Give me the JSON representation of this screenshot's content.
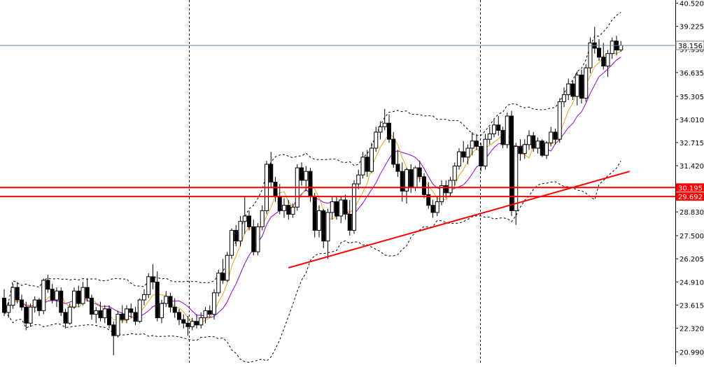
{
  "chart_data": {
    "type": "candlestick",
    "title": "",
    "ylim": [
      20.3,
      40.7
    ],
    "price_axis_ticks": [
      "40.520",
      "39.225",
      "37.930",
      "36.635",
      "35.305",
      "34.010",
      "32.715",
      "31.420",
      "30.125",
      "28.830",
      "27.500",
      "26.205",
      "24.910",
      "23.615",
      "22.320",
      "20.990"
    ],
    "current_price": {
      "value": 38.156,
      "label": "38.156"
    },
    "horizontal_levels": [
      {
        "value": 30.195,
        "label": "30.195",
        "color": "#ff0000"
      },
      {
        "value": 29.692,
        "label": "29.692",
        "color": "#ff0000"
      }
    ],
    "trendline": {
      "from_index": 65,
      "from_value": 25.7,
      "to_index": 143,
      "to_value": 31.1,
      "color": "#ff0000"
    },
    "ohlc": [
      [
        24.0,
        24.5,
        23.0,
        23.2
      ],
      [
        23.2,
        23.8,
        22.9,
        23.6
      ],
      [
        23.6,
        24.8,
        23.4,
        24.6
      ],
      [
        24.6,
        24.9,
        23.7,
        23.9
      ],
      [
        23.9,
        24.2,
        23.3,
        23.5
      ],
      [
        23.5,
        23.8,
        22.2,
        22.6
      ],
      [
        22.6,
        23.7,
        22.4,
        23.5
      ],
      [
        23.5,
        24.1,
        23.2,
        23.9
      ],
      [
        23.9,
        24.0,
        23.0,
        23.3
      ],
      [
        23.3,
        25.1,
        23.1,
        25.0
      ],
      [
        25.0,
        25.3,
        24.3,
        24.5
      ],
      [
        24.5,
        24.8,
        23.7,
        23.9
      ],
      [
        23.9,
        24.6,
        23.5,
        24.4
      ],
      [
        24.4,
        24.6,
        23.0,
        23.2
      ],
      [
        23.2,
        23.4,
        22.3,
        22.6
      ],
      [
        22.6,
        23.7,
        22.5,
        23.5
      ],
      [
        23.5,
        24.6,
        23.4,
        24.4
      ],
      [
        24.4,
        24.7,
        23.5,
        23.7
      ],
      [
        23.7,
        24.9,
        23.6,
        24.6
      ],
      [
        24.6,
        25.1,
        23.8,
        24.0
      ],
      [
        24.0,
        24.2,
        22.8,
        23.1
      ],
      [
        23.1,
        23.5,
        22.6,
        23.3
      ],
      [
        23.3,
        23.8,
        22.7,
        22.9
      ],
      [
        22.9,
        23.6,
        22.6,
        23.4
      ],
      [
        23.4,
        23.6,
        22.3,
        22.5
      ],
      [
        22.5,
        22.7,
        20.8,
        21.9
      ],
      [
        21.9,
        23.3,
        21.8,
        23.1
      ],
      [
        23.1,
        23.6,
        22.6,
        22.8
      ],
      [
        22.8,
        23.6,
        22.6,
        23.4
      ],
      [
        23.4,
        23.7,
        22.9,
        23.2
      ],
      [
        23.2,
        23.5,
        22.5,
        22.7
      ],
      [
        22.7,
        24.0,
        22.6,
        23.9
      ],
      [
        23.9,
        24.5,
        23.6,
        24.2
      ],
      [
        24.2,
        25.4,
        24.0,
        25.2
      ],
      [
        25.2,
        25.9,
        24.5,
        24.9
      ],
      [
        24.9,
        25.5,
        22.7,
        22.9
      ],
      [
        22.9,
        23.9,
        22.6,
        23.7
      ],
      [
        23.7,
        24.4,
        23.5,
        24.1
      ],
      [
        24.1,
        24.3,
        23.2,
        23.5
      ],
      [
        23.5,
        24.0,
        22.9,
        23.2
      ],
      [
        23.2,
        23.4,
        22.5,
        22.8
      ],
      [
        22.8,
        23.1,
        22.3,
        22.6
      ],
      [
        22.6,
        23.0,
        21.9,
        22.4
      ],
      [
        22.4,
        22.9,
        22.2,
        22.7
      ],
      [
        22.7,
        23.1,
        22.3,
        22.5
      ],
      [
        22.5,
        23.2,
        22.3,
        22.9
      ],
      [
        22.9,
        23.5,
        22.6,
        23.3
      ],
      [
        23.3,
        23.6,
        22.9,
        23.1
      ],
      [
        23.1,
        24.5,
        22.8,
        24.3
      ],
      [
        24.3,
        25.6,
        24.1,
        25.4
      ],
      [
        25.4,
        26.2,
        24.8,
        25.0
      ],
      [
        25.0,
        26.6,
        24.9,
        26.4
      ],
      [
        26.4,
        27.9,
        26.2,
        27.8
      ],
      [
        27.8,
        28.1,
        26.9,
        27.2
      ],
      [
        27.2,
        28.6,
        26.9,
        28.3
      ],
      [
        28.3,
        29.7,
        27.6,
        28.6
      ],
      [
        28.6,
        28.9,
        27.8,
        28.0
      ],
      [
        28.0,
        28.4,
        26.4,
        26.6
      ],
      [
        26.6,
        28.2,
        26.4,
        28.0
      ],
      [
        28.0,
        29.2,
        27.8,
        28.9
      ],
      [
        28.9,
        31.7,
        28.7,
        31.5
      ],
      [
        31.5,
        32.2,
        30.2,
        30.5
      ],
      [
        30.5,
        30.8,
        29.4,
        29.7
      ],
      [
        29.7,
        30.4,
        28.7,
        28.9
      ],
      [
        28.9,
        29.6,
        28.5,
        29.2
      ],
      [
        29.2,
        29.5,
        28.4,
        28.7
      ],
      [
        28.7,
        29.3,
        28.5,
        29.1
      ],
      [
        29.1,
        31.5,
        28.9,
        31.3
      ],
      [
        31.3,
        31.6,
        30.3,
        30.6
      ],
      [
        30.6,
        31.4,
        30.0,
        31.1
      ],
      [
        31.1,
        31.3,
        29.4,
        29.7
      ],
      [
        29.7,
        29.9,
        27.4,
        27.8
      ],
      [
        27.8,
        29.2,
        27.4,
        28.9
      ],
      [
        28.9,
        29.0,
        26.8,
        27.2
      ],
      [
        27.2,
        29.0,
        26.2,
        28.8
      ],
      [
        28.8,
        29.7,
        28.4,
        29.4
      ],
      [
        29.4,
        29.7,
        28.4,
        28.6
      ],
      [
        28.6,
        29.7,
        28.2,
        29.5
      ],
      [
        29.5,
        29.8,
        28.4,
        28.7
      ],
      [
        28.7,
        29.5,
        27.5,
        27.8
      ],
      [
        27.8,
        30.6,
        27.6,
        30.4
      ],
      [
        30.4,
        31.2,
        30.1,
        30.9
      ],
      [
        30.9,
        32.2,
        30.7,
        31.9
      ],
      [
        31.9,
        32.3,
        30.8,
        31.1
      ],
      [
        31.1,
        32.7,
        31.0,
        32.4
      ],
      [
        32.4,
        33.6,
        32.2,
        33.3
      ],
      [
        33.3,
        33.9,
        32.9,
        33.6
      ],
      [
        33.6,
        34.6,
        33.4,
        33.8
      ],
      [
        33.8,
        34.3,
        32.7,
        32.9
      ],
      [
        32.9,
        33.3,
        31.3,
        31.5
      ],
      [
        31.5,
        32.3,
        30.8,
        31.1
      ],
      [
        31.1,
        31.6,
        29.4,
        30.0
      ],
      [
        30.0,
        31.3,
        29.3,
        31.2
      ],
      [
        31.2,
        31.5,
        29.9,
        30.2
      ],
      [
        30.2,
        31.4,
        30.0,
        31.3
      ],
      [
        31.3,
        31.7,
        30.5,
        30.8
      ],
      [
        30.8,
        31.0,
        29.6,
        29.8
      ],
      [
        29.8,
        30.5,
        29.0,
        29.2
      ],
      [
        29.2,
        29.5,
        28.5,
        28.8
      ],
      [
        28.8,
        29.7,
        28.6,
        29.4
      ],
      [
        29.4,
        30.6,
        29.2,
        30.3
      ],
      [
        30.3,
        30.6,
        29.6,
        29.9
      ],
      [
        29.9,
        30.8,
        29.7,
        30.6
      ],
      [
        30.6,
        31.6,
        30.3,
        31.4
      ],
      [
        31.4,
        32.4,
        31.2,
        32.2
      ],
      [
        32.2,
        32.8,
        31.6,
        31.9
      ],
      [
        31.9,
        32.6,
        31.5,
        32.4
      ],
      [
        32.4,
        33.3,
        32.0,
        32.8
      ],
      [
        32.8,
        33.2,
        32.3,
        32.5
      ],
      [
        32.5,
        32.7,
        31.1,
        31.4
      ],
      [
        31.4,
        33.2,
        31.2,
        32.9
      ],
      [
        32.9,
        33.6,
        32.6,
        33.2
      ],
      [
        33.2,
        34.0,
        33.0,
        33.7
      ],
      [
        33.7,
        34.2,
        33.1,
        33.4
      ],
      [
        33.4,
        33.6,
        32.4,
        32.6
      ],
      [
        32.6,
        34.4,
        32.4,
        34.2
      ],
      [
        34.2,
        34.5,
        28.6,
        28.9
      ],
      [
        28.9,
        32.7,
        28.1,
        32.5
      ],
      [
        32.5,
        32.9,
        31.7,
        32.1
      ],
      [
        32.1,
        32.9,
        31.8,
        32.6
      ],
      [
        32.6,
        33.4,
        32.3,
        33.1
      ],
      [
        33.1,
        33.3,
        32.2,
        32.4
      ],
      [
        32.4,
        33.0,
        32.1,
        32.8
      ],
      [
        32.8,
        32.9,
        31.9,
        32.0
      ],
      [
        32.0,
        32.8,
        31.8,
        32.7
      ],
      [
        32.7,
        33.6,
        32.5,
        33.3
      ],
      [
        33.3,
        33.5,
        32.6,
        32.9
      ],
      [
        32.9,
        35.2,
        32.7,
        35.0
      ],
      [
        35.0,
        35.8,
        34.7,
        35.4
      ],
      [
        35.4,
        36.3,
        35.1,
        36.0
      ],
      [
        36.0,
        36.2,
        35.1,
        35.3
      ],
      [
        35.3,
        36.7,
        34.8,
        36.5
      ],
      [
        36.5,
        36.8,
        34.9,
        35.2
      ],
      [
        35.2,
        37.1,
        35.0,
        36.9
      ],
      [
        36.9,
        38.6,
        36.6,
        38.3
      ],
      [
        38.3,
        39.2,
        37.7,
        38.0
      ],
      [
        38.0,
        38.5,
        37.3,
        37.5
      ],
      [
        37.5,
        38.3,
        36.8,
        37.0
      ],
      [
        37.0,
        37.9,
        36.4,
        37.7
      ],
      [
        37.7,
        38.6,
        37.4,
        38.4
      ],
      [
        38.4,
        38.7,
        37.6,
        37.9
      ],
      [
        37.9,
        38.4,
        37.8,
        38.16
      ]
    ]
  }
}
